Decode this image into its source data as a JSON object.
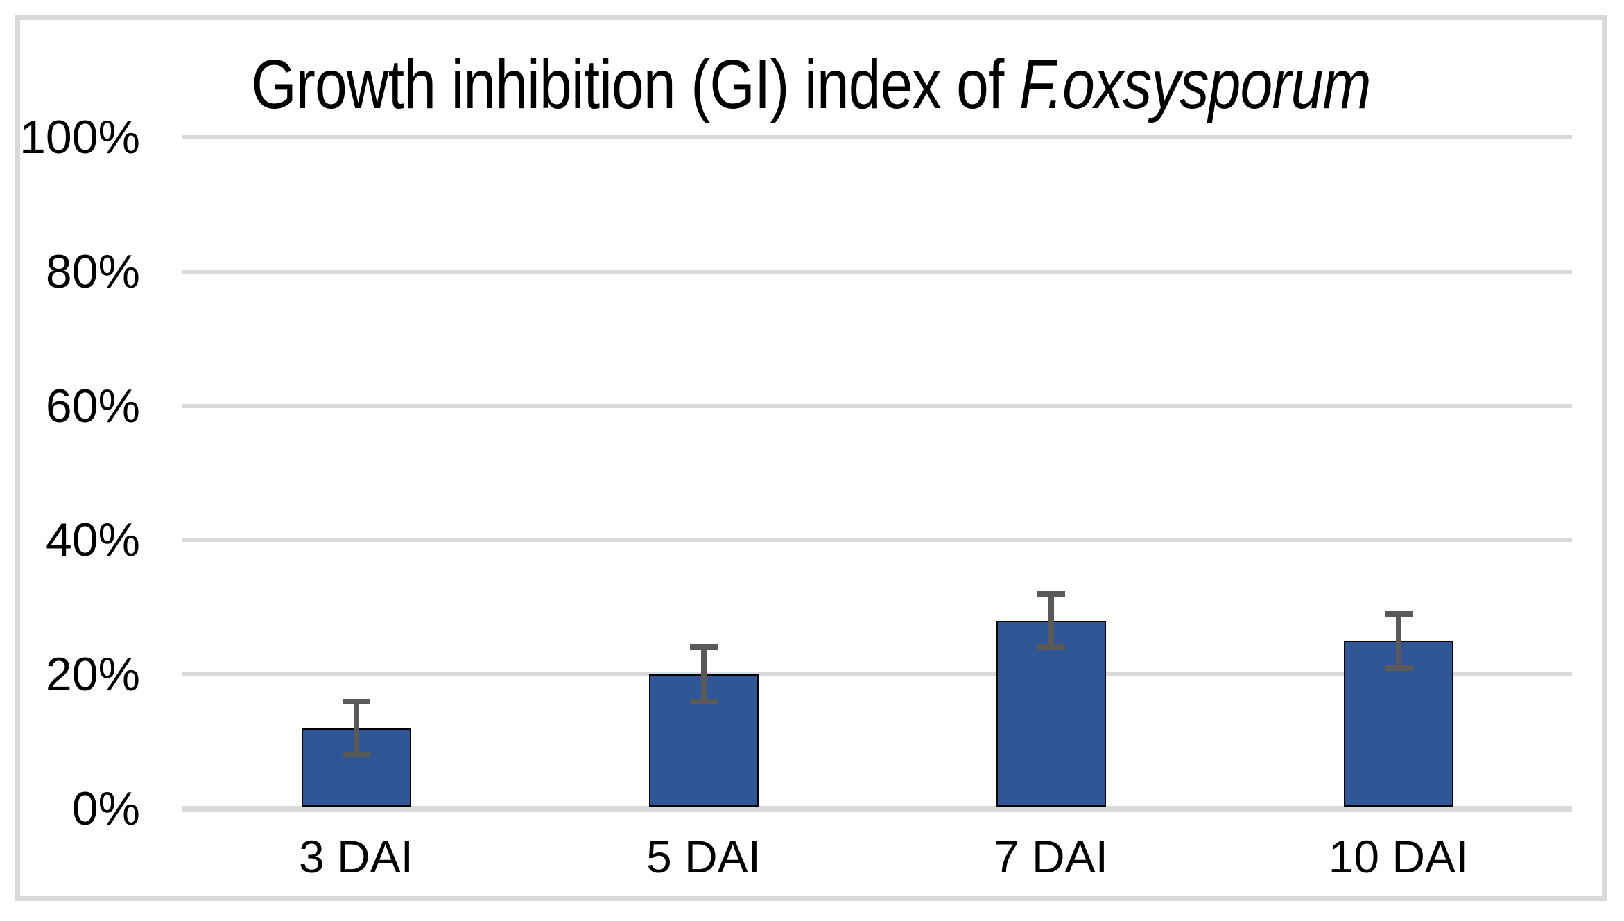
{
  "chart_data": {
    "type": "bar",
    "title": "Growth inhibition (GI) index of F.oxsysporum",
    "title_prefix": "Growth inhibition (GI) index of ",
    "title_italic": "F.oxsysporum",
    "categories": [
      "3 DAI",
      "5 DAI",
      "7 DAI",
      "10 DAI"
    ],
    "values": [
      12,
      20,
      28,
      25
    ],
    "errors": [
      4,
      4,
      4,
      4
    ],
    "value_unit": "%",
    "ylim": [
      0,
      100
    ],
    "y_tick_step": 20,
    "y_ticks": [
      {
        "label": "100%",
        "value": 100
      },
      {
        "label": "80%",
        "value": 80
      },
      {
        "label": "60%",
        "value": 60
      },
      {
        "label": "40%",
        "value": 40
      },
      {
        "label": "20%",
        "value": 20
      },
      {
        "label": "0%",
        "value": 0
      }
    ],
    "grid": "horizontal",
    "legend": "none",
    "colors": {
      "bar_fill": "#305695",
      "bar_outline": "#000000",
      "error_bar": "#595959",
      "gridline": "#d9d9d9",
      "frame_border": "#d9d9d9",
      "background": "#ffffff",
      "text": "#000000"
    }
  }
}
